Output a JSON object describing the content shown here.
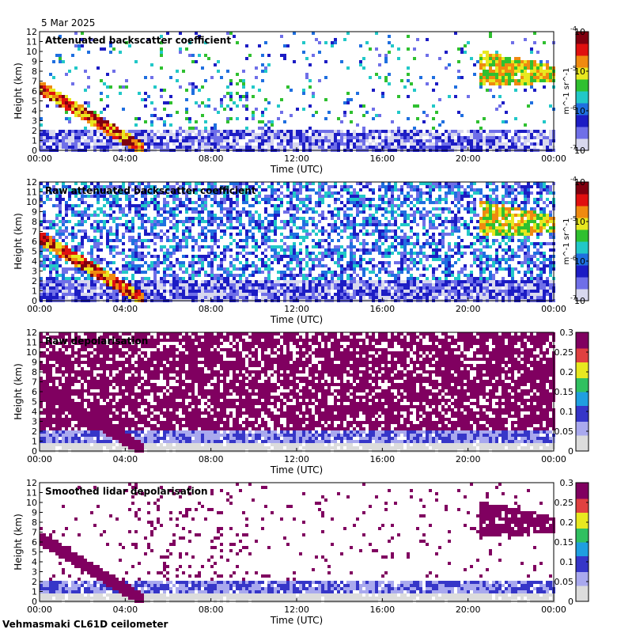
{
  "date_label": "5 Mar 2025",
  "footer_label": "Vehmasmaki CL61D ceilometer",
  "chart_data": [
    {
      "type": "heatmap",
      "title": "Attenuated backscatter coefficient",
      "xlabel": "Time (UTC)",
      "ylabel": "Height (km)",
      "x_ticks": [
        "00:00",
        "04:00",
        "08:00",
        "12:00",
        "16:00",
        "20:00",
        "00:00"
      ],
      "y_ticks": [
        "0",
        "1",
        "2",
        "3",
        "4",
        "5",
        "6",
        "7",
        "8",
        "9",
        "10",
        "11",
        "12"
      ],
      "ylim": [
        0,
        12
      ],
      "colorbar": {
        "scale": "log",
        "ticks": [
          "10^-7",
          "10^-6",
          "10^-5",
          "10^-4"
        ],
        "label": "m^-1 sr^-1",
        "colormap": "jet-like, grey-blue low to dark red high"
      }
    },
    {
      "type": "heatmap",
      "title": "Raw attenuated backscatter coefficient",
      "xlabel": "Time (UTC)",
      "ylabel": "Height (km)",
      "x_ticks": [
        "00:00",
        "04:00",
        "08:00",
        "12:00",
        "16:00",
        "20:00",
        "00:00"
      ],
      "y_ticks": [
        "0",
        "1",
        "2",
        "3",
        "4",
        "5",
        "6",
        "7",
        "8",
        "9",
        "10",
        "11",
        "12"
      ],
      "ylim": [
        0,
        12
      ],
      "colorbar": {
        "scale": "log",
        "ticks": [
          "10^-7",
          "10^-6",
          "10^-5",
          "10^-4"
        ],
        "label": "m^-1 sr^-1",
        "colormap": "jet-like, grey-blue low to dark red high"
      }
    },
    {
      "type": "heatmap",
      "title": "Raw depolarisation",
      "xlabel": "Time (UTC)",
      "ylabel": "Height (km)",
      "x_ticks": [
        "00:00",
        "04:00",
        "08:00",
        "12:00",
        "16:00",
        "20:00",
        "00:00"
      ],
      "y_ticks": [
        "0",
        "1",
        "2",
        "3",
        "4",
        "5",
        "6",
        "7",
        "8",
        "9",
        "10",
        "11",
        "12"
      ],
      "ylim": [
        0,
        12
      ],
      "colorbar": {
        "scale": "linear",
        "ticks": [
          "0",
          "0.05",
          "0.1",
          "0.15",
          "0.2",
          "0.25",
          "0.3"
        ],
        "range": [
          0,
          0.3
        ],
        "colormap": "grey-blue low to purple high"
      }
    },
    {
      "type": "heatmap",
      "title": "Smoothed lidar depolarisation",
      "xlabel": "Time (UTC)",
      "ylabel": "Height (km)",
      "x_ticks": [
        "00:00",
        "04:00",
        "08:00",
        "12:00",
        "16:00",
        "20:00",
        "00:00"
      ],
      "y_ticks": [
        "0",
        "1",
        "2",
        "3",
        "4",
        "5",
        "6",
        "7",
        "8",
        "9",
        "10",
        "11",
        "12"
      ],
      "ylim": [
        0,
        12
      ],
      "colorbar": {
        "scale": "linear",
        "ticks": [
          "0",
          "0.05",
          "0.1",
          "0.15",
          "0.2",
          "0.25",
          "0.3"
        ],
        "range": [
          0,
          0.3
        ],
        "colormap": "grey-blue low to purple high"
      }
    }
  ]
}
